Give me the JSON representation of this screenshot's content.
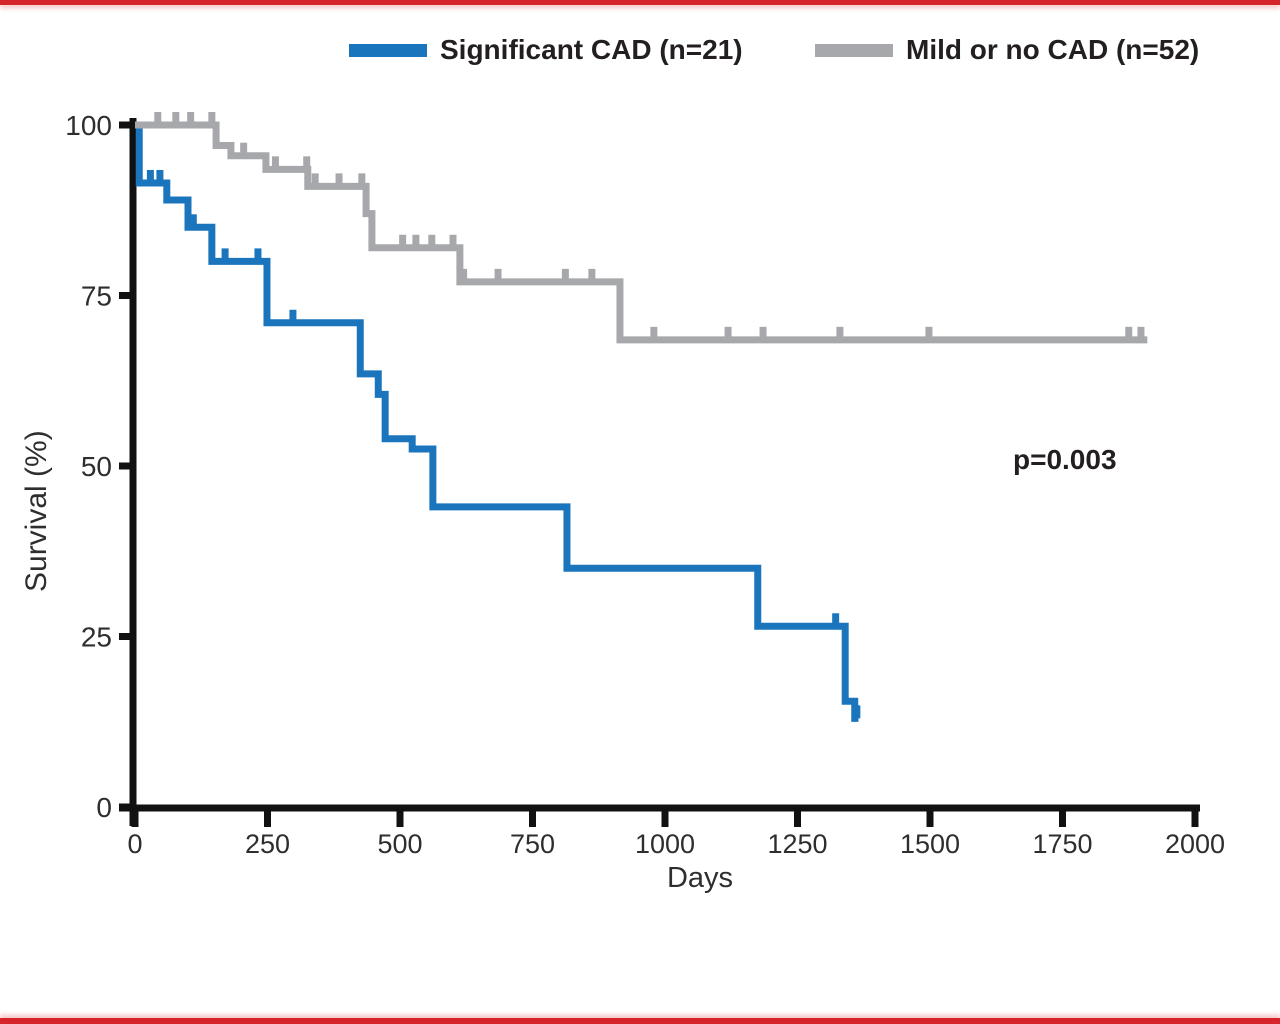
{
  "figure": {
    "border_color": "#d6242b",
    "background_color": "#ffffff",
    "axis_color": "#111111",
    "tick_label_color": "#2e2e2e"
  },
  "chart_data": {
    "type": "line",
    "subtype": "kaplan-meier-step",
    "title": "",
    "xlabel": "Days",
    "ylabel": "Survival (%)",
    "xlim": [
      0,
      2000
    ],
    "ylim": [
      0,
      100
    ],
    "xticks": [
      0,
      250,
      500,
      750,
      1000,
      1250,
      1500,
      1750,
      2000
    ],
    "yticks": [
      0,
      25,
      50,
      75,
      100
    ],
    "grid": false,
    "legend_position": "top-center",
    "annotation": "p=0.003",
    "series": [
      {
        "name": "Significant CAD (n=21)",
        "color": "#1b75bc",
        "steps": [
          [
            0,
            100
          ],
          [
            8,
            91.5
          ],
          [
            60,
            89
          ],
          [
            100,
            85
          ],
          [
            145,
            80
          ],
          [
            249,
            71
          ],
          [
            425,
            63.5
          ],
          [
            459,
            60.5
          ],
          [
            472,
            54
          ],
          [
            523,
            52.5
          ],
          [
            562,
            44
          ],
          [
            815,
            35
          ],
          [
            1175,
            26.5
          ],
          [
            1340,
            15.5
          ],
          [
            1358,
            13
          ],
          [
            1365,
            13
          ]
        ],
        "censor_marks": [
          [
            29,
            91.5
          ],
          [
            47,
            91.5
          ],
          [
            110,
            85
          ],
          [
            170,
            80
          ],
          [
            232,
            80
          ],
          [
            298,
            71
          ],
          [
            1322,
            26.5
          ],
          [
            1362,
            13
          ]
        ]
      },
      {
        "name": "Mild or no CAD (n=52)",
        "color": "#a6a8ab",
        "steps": [
          [
            0,
            100
          ],
          [
            153,
            97
          ],
          [
            181,
            95.5
          ],
          [
            247,
            93.5
          ],
          [
            326,
            91
          ],
          [
            436,
            87
          ],
          [
            447,
            82
          ],
          [
            613,
            77
          ],
          [
            915,
            68.5
          ],
          [
            1910,
            68.5
          ]
        ],
        "censor_marks": [
          [
            43,
            100
          ],
          [
            77,
            100
          ],
          [
            105,
            100
          ],
          [
            145,
            100
          ],
          [
            205,
            95.5
          ],
          [
            265,
            93.5
          ],
          [
            324,
            93.5
          ],
          [
            340,
            91
          ],
          [
            385,
            91
          ],
          [
            428,
            91
          ],
          [
            505,
            82
          ],
          [
            530,
            82
          ],
          [
            560,
            82
          ],
          [
            600,
            82
          ],
          [
            620,
            77
          ],
          [
            685,
            77
          ],
          [
            812,
            77
          ],
          [
            862,
            77
          ],
          [
            979,
            68.5
          ],
          [
            1119,
            68.5
          ],
          [
            1185,
            68.5
          ],
          [
            1330,
            68.5
          ],
          [
            1498,
            68.5
          ],
          [
            1875,
            68.5
          ],
          [
            1898,
            68.5
          ]
        ]
      }
    ]
  }
}
